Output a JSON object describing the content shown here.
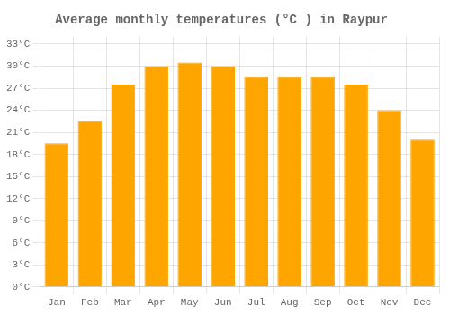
{
  "chart_data": {
    "type": "bar",
    "title": "Average monthly temperatures (°C ) in Raypur",
    "categories": [
      "Jan",
      "Feb",
      "Mar",
      "Apr",
      "May",
      "Jun",
      "Jul",
      "Aug",
      "Sep",
      "Oct",
      "Nov",
      "Dec"
    ],
    "values": [
      19.5,
      22.5,
      27.5,
      30.0,
      30.5,
      30.0,
      28.5,
      28.5,
      28.5,
      27.5,
      24.0,
      20.0
    ],
    "color": "#FFA500",
    "ylim": [
      0,
      34
    ],
    "yticks": [
      {
        "value": 0,
        "label": "0°C"
      },
      {
        "value": 3,
        "label": "3°C"
      },
      {
        "value": 6,
        "label": "6°C"
      },
      {
        "value": 9,
        "label": "9°C"
      },
      {
        "value": 12,
        "label": "12°C"
      },
      {
        "value": 15,
        "label": "15°C"
      },
      {
        "value": 18,
        "label": "18°C"
      },
      {
        "value": 21,
        "label": "21°C"
      },
      {
        "value": 24,
        "label": "24°C"
      },
      {
        "value": 27,
        "label": "27°C"
      },
      {
        "value": 30,
        "label": "30°C"
      },
      {
        "value": 33,
        "label": "33°C"
      }
    ],
    "grid": true
  }
}
